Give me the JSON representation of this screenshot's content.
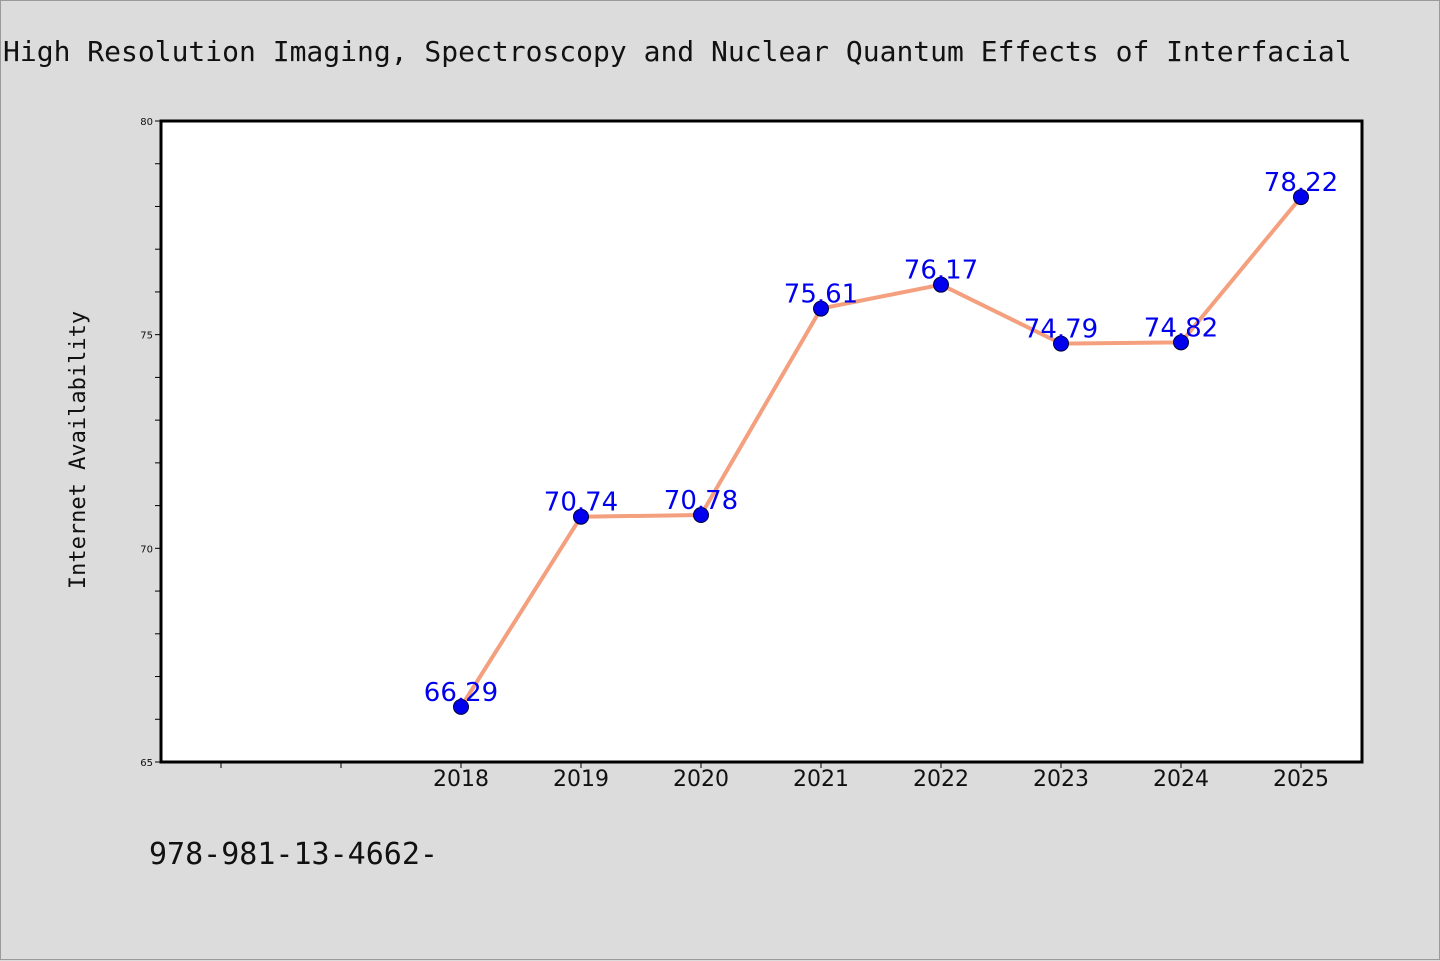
{
  "chart_data": {
    "type": "line",
    "title": "High Resolution Imaging, Spectroscopy and Nuclear Quantum Effects of Interfacial",
    "xlabel": "",
    "ylabel": "Internet Availability",
    "x": [
      "2018",
      "2019",
      "2020",
      "2021",
      "2022",
      "2023",
      "2024",
      "2025"
    ],
    "values": [
      66.29,
      70.74,
      70.78,
      75.61,
      76.17,
      74.79,
      74.82,
      78.22
    ],
    "data_labels": [
      "66.29",
      "70.74",
      "70.78",
      "75.61",
      "76.17",
      "74.79",
      "74.82",
      "78.22"
    ],
    "ylim": [
      65,
      80
    ],
    "yticks": [
      "65",
      "70",
      "75",
      "80"
    ],
    "grid": false,
    "line_color": "#f4a07e",
    "marker_color": "#0000ee",
    "label_color": "#0000ee"
  },
  "footer": {
    "code": "978-981-13-4662-"
  }
}
